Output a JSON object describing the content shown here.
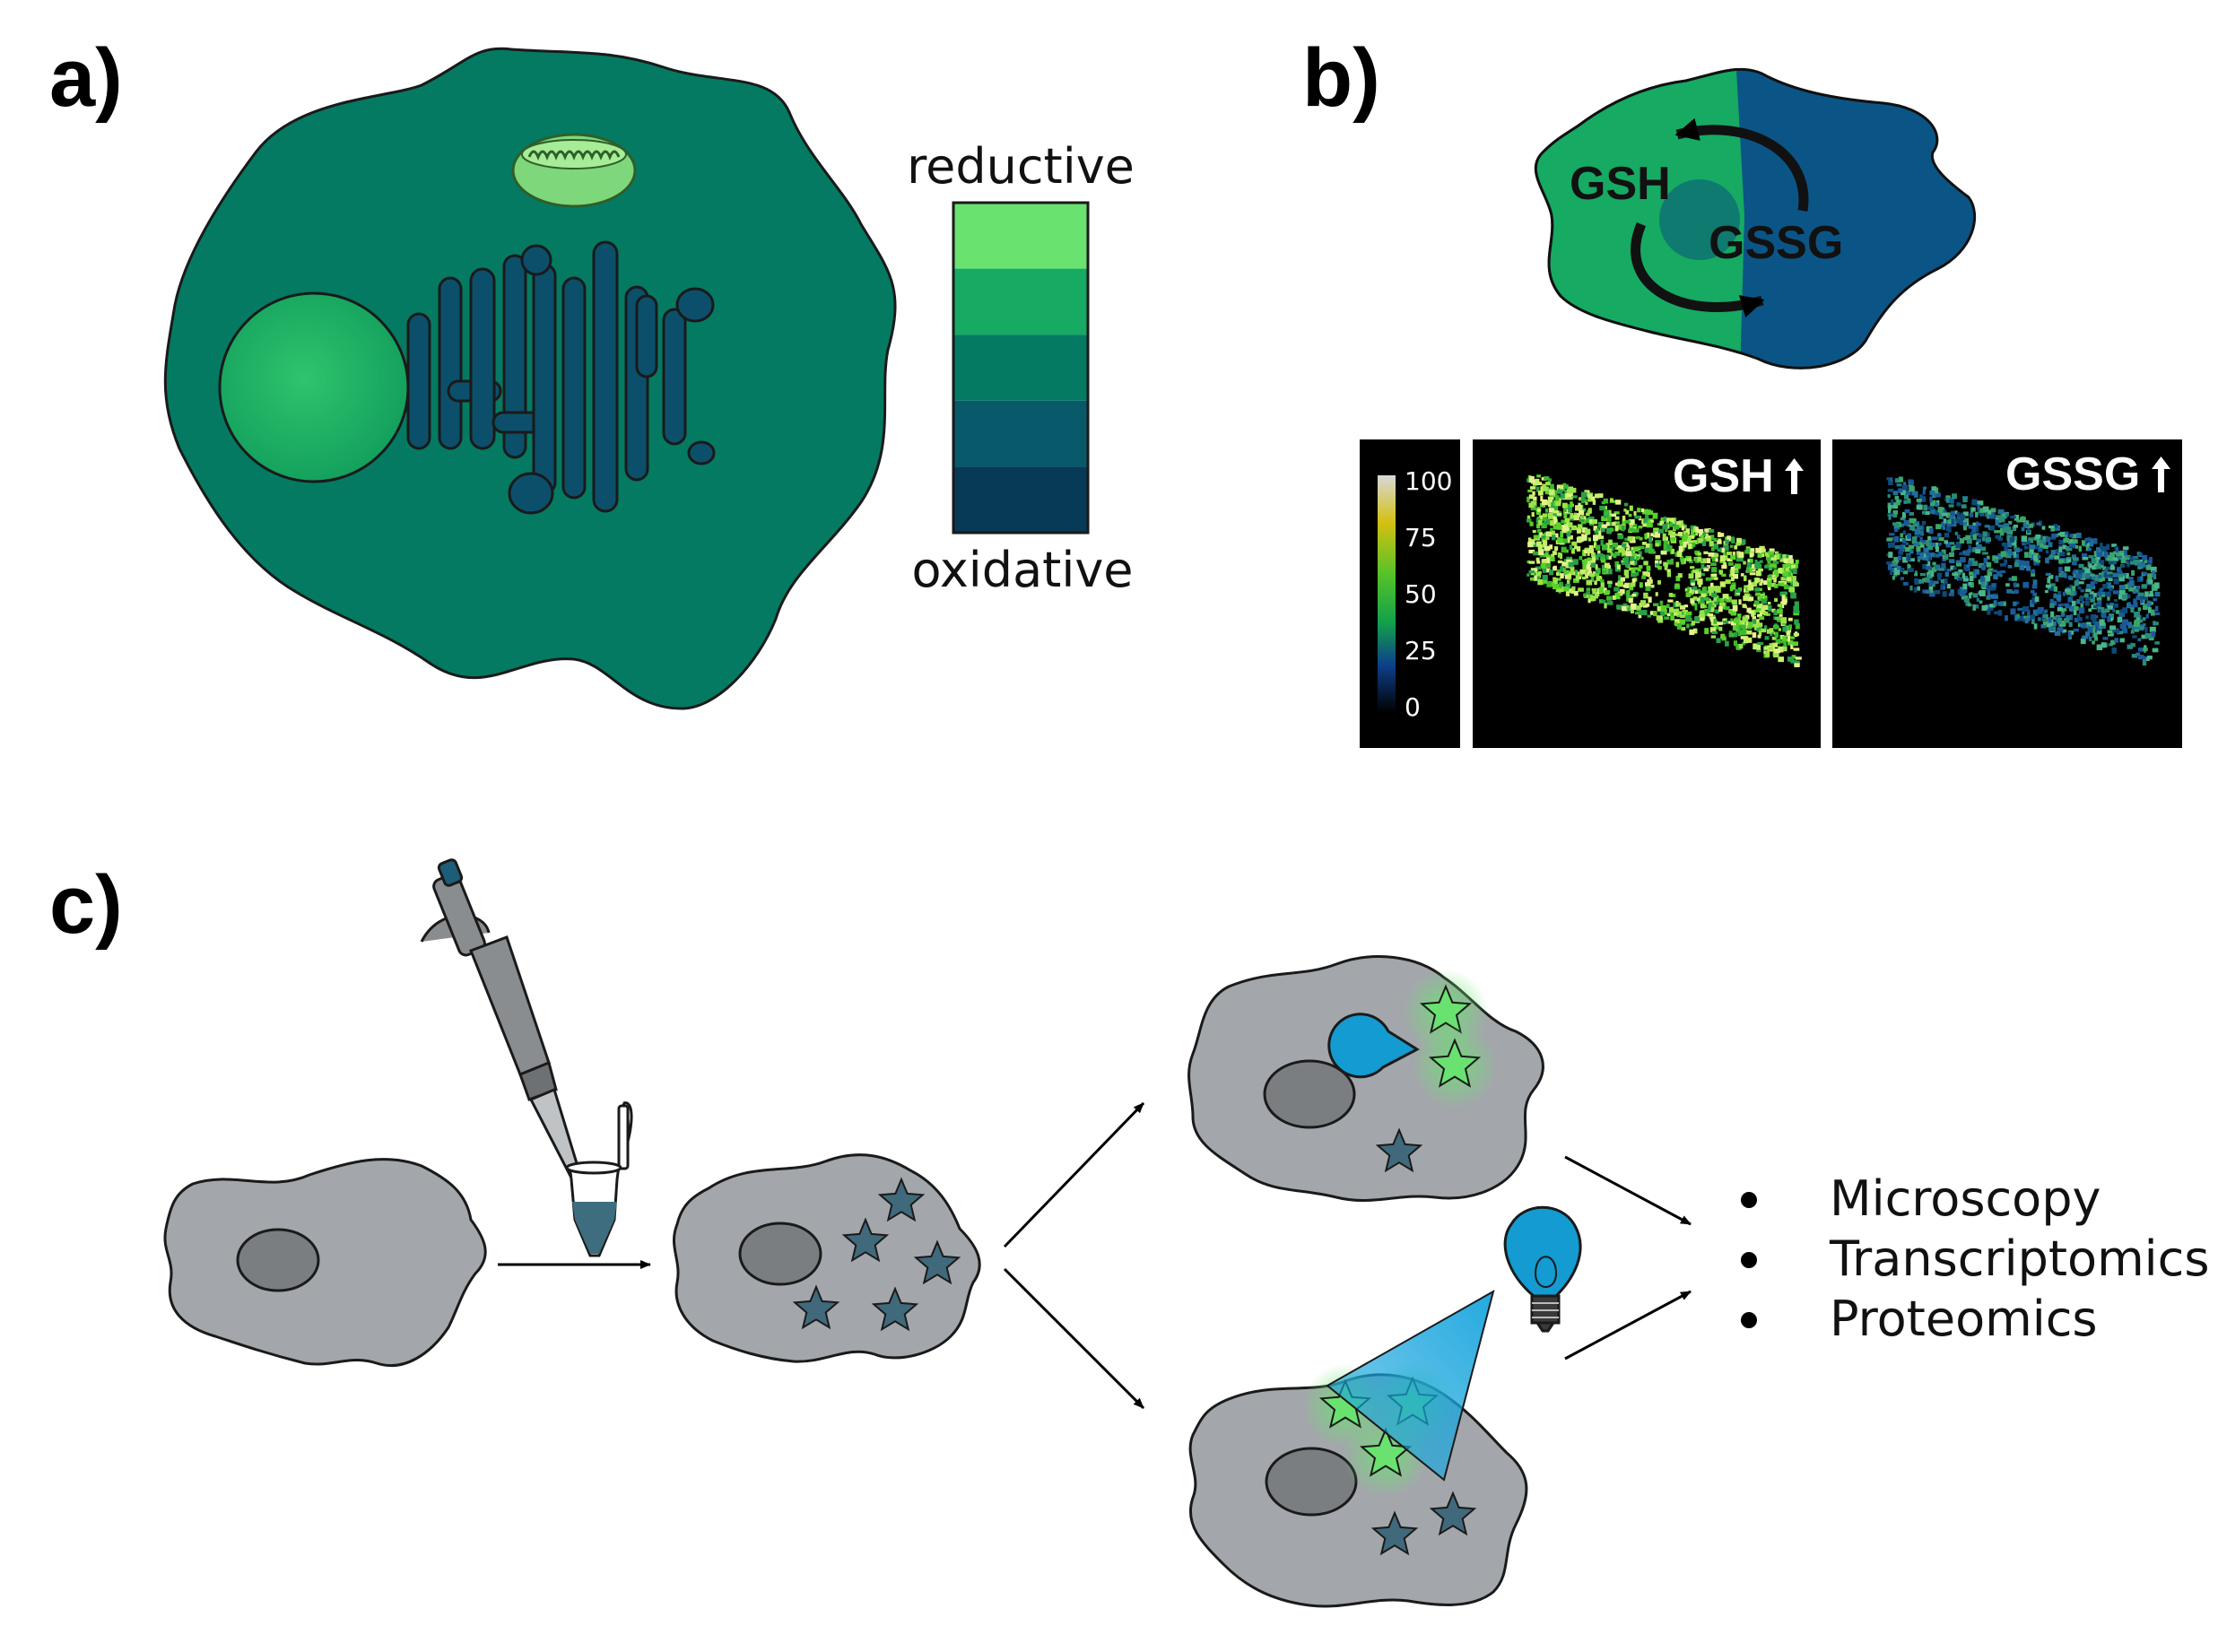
{
  "panels": {
    "a": {
      "label": "a)",
      "scale_top": "reductive",
      "scale_bottom": "oxidative",
      "scale_colors": [
        "#69e26f",
        "#16aa63",
        "#047a62",
        "#08596a",
        "#073a57"
      ]
    },
    "b": {
      "label": "b)",
      "reduced": "GSH",
      "oxidized": "GSSG",
      "image_left_title": "GSH",
      "image_right_title": "GSSG",
      "colorbar_ticks": [
        "100",
        "75",
        "50",
        "25",
        "0"
      ]
    },
    "c": {
      "label": "c)",
      "bullets": [
        "Microscopy",
        "Transcriptomics",
        "Proteomics"
      ]
    }
  },
  "colors": {
    "cell_green": "#047a62",
    "nucleus_green": "#16aa63",
    "golgi_blue": "#0c4f6b",
    "gray_cell": "#a3a7ab",
    "gray_nucleus": "#7b7e81",
    "star_teal": "#41697c",
    "star_green": "#69e26f",
    "pacman_blue": "#139bd2"
  }
}
